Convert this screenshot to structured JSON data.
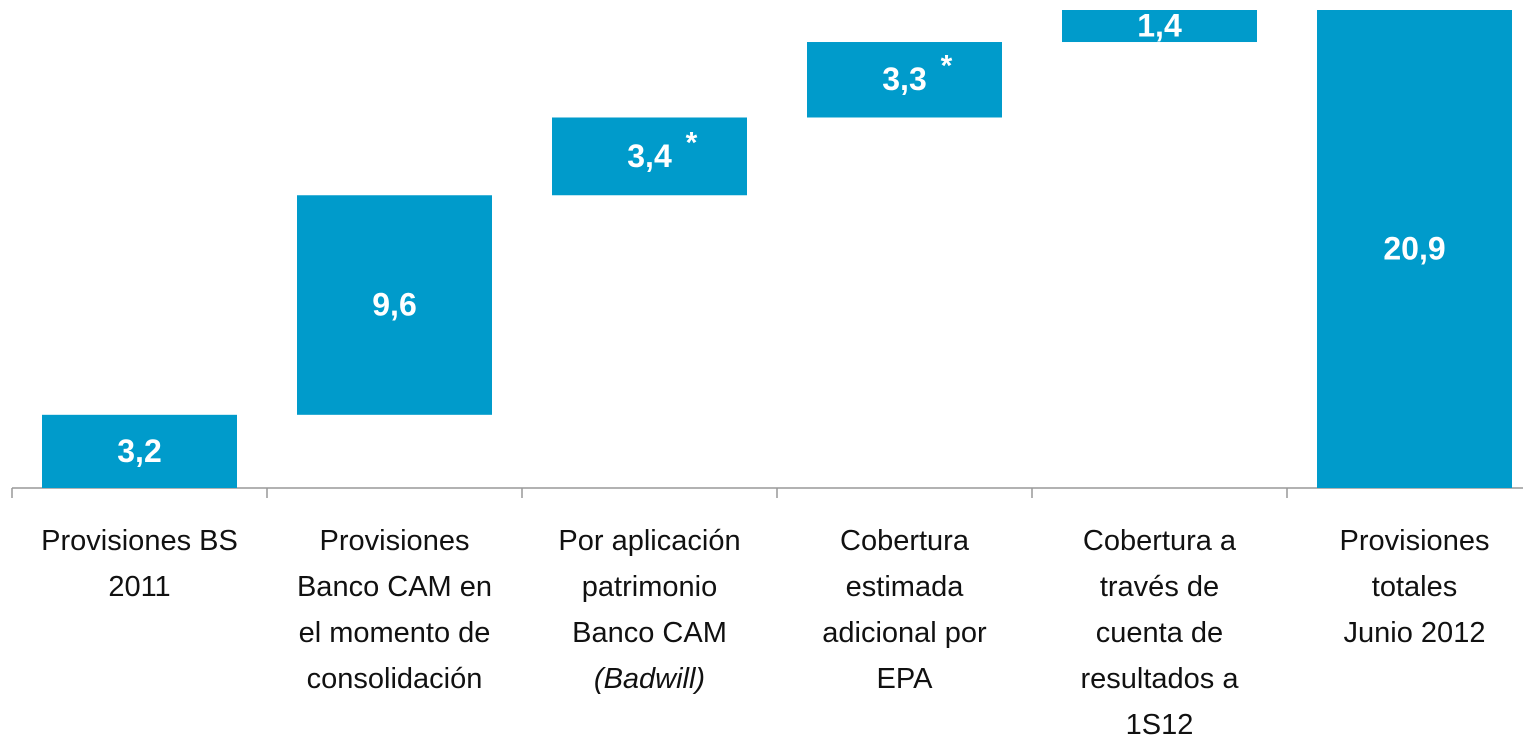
{
  "chart_data": {
    "type": "waterfall",
    "categories": [
      "Provisiones BS\n2011",
      "Provisiones\nBanco CAM en\nel momento de\nconsolidación",
      "Por aplicación\npatrimonio\nBanco CAM",
      "Cobertura\nestimada\nadicional por\nEPA",
      "Cobertura a\ntravés de\ncuenta de\nresultados a\n1S12",
      "Provisiones\ntotales\nJunio 2012"
    ],
    "category_notes": [
      null,
      null,
      "(Badwill)",
      null,
      null,
      null
    ],
    "values": [
      3.2,
      9.6,
      3.4,
      3.3,
      1.4,
      20.9
    ],
    "value_labels": [
      "3,2",
      "9,6",
      "3,4",
      "3,3",
      "1,4",
      "20,9"
    ],
    "value_label_suffixes": [
      null,
      null,
      "*",
      "*",
      null,
      null
    ],
    "measures": [
      "relative",
      "relative",
      "relative",
      "relative",
      "relative",
      "total"
    ],
    "color": "#009bcb",
    "ylim": [
      0,
      20.9
    ]
  }
}
